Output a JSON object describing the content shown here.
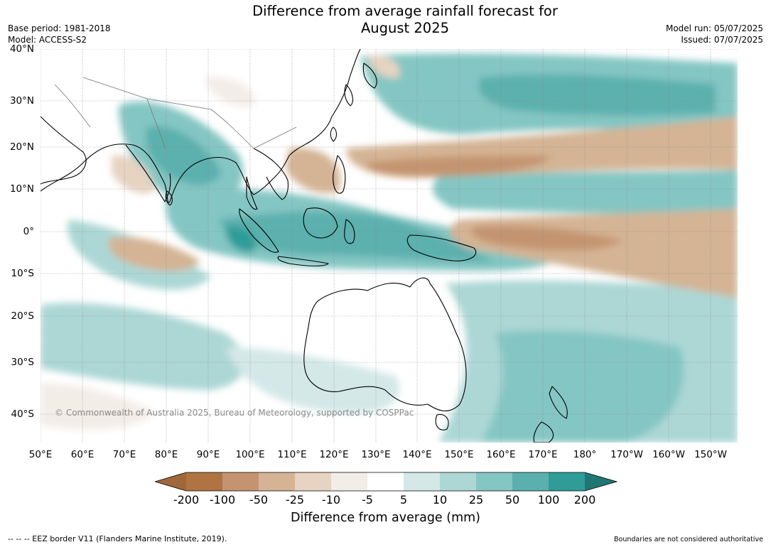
{
  "title_line1": "Difference from average rainfall forecast for",
  "title_line2": "August 2025",
  "meta": {
    "base_period": "Base period: 1981-2018",
    "model": "Model: ACCESS-S2",
    "model_run": "Model run: 05/07/2025",
    "issued": "Issued: 07/07/2025"
  },
  "lat_labels": [
    "40°N",
    "30°N",
    "20°N",
    "10°N",
    "0°",
    "10°S",
    "20°S",
    "30°S",
    "40°S"
  ],
  "lon_labels": [
    "50°E",
    "60°E",
    "70°E",
    "80°E",
    "90°E",
    "100°E",
    "110°E",
    "120°E",
    "130°E",
    "140°E",
    "150°E",
    "160°E",
    "170°E",
    "180°",
    "170°W",
    "160°W",
    "150°W"
  ],
  "copyright": "© Commonwealth of Australia 2025, Bureau of Meteorology, supported by COSPPac",
  "colorbar": {
    "title": "Difference from average (mm)",
    "labels": [
      "-200",
      "-100",
      "-50",
      "-25",
      "-10",
      "-5",
      "5",
      "10",
      "25",
      "50",
      "100",
      "200"
    ],
    "colors": [
      "#a0683a",
      "#b07442",
      "#c49470",
      "#d4b494",
      "#e6d3c2",
      "#f3ede8",
      "#ffffff",
      "#d3e8e7",
      "#acd7d5",
      "#84c6c3",
      "#5bb0ae",
      "#2f9c98",
      "#1f7773"
    ]
  },
  "footer": {
    "eez": "--  --  -- EEZ border V11 (Flanders Marine Institute, 2019).",
    "disclaimer": "Boundaries are not considered authoritative"
  }
}
